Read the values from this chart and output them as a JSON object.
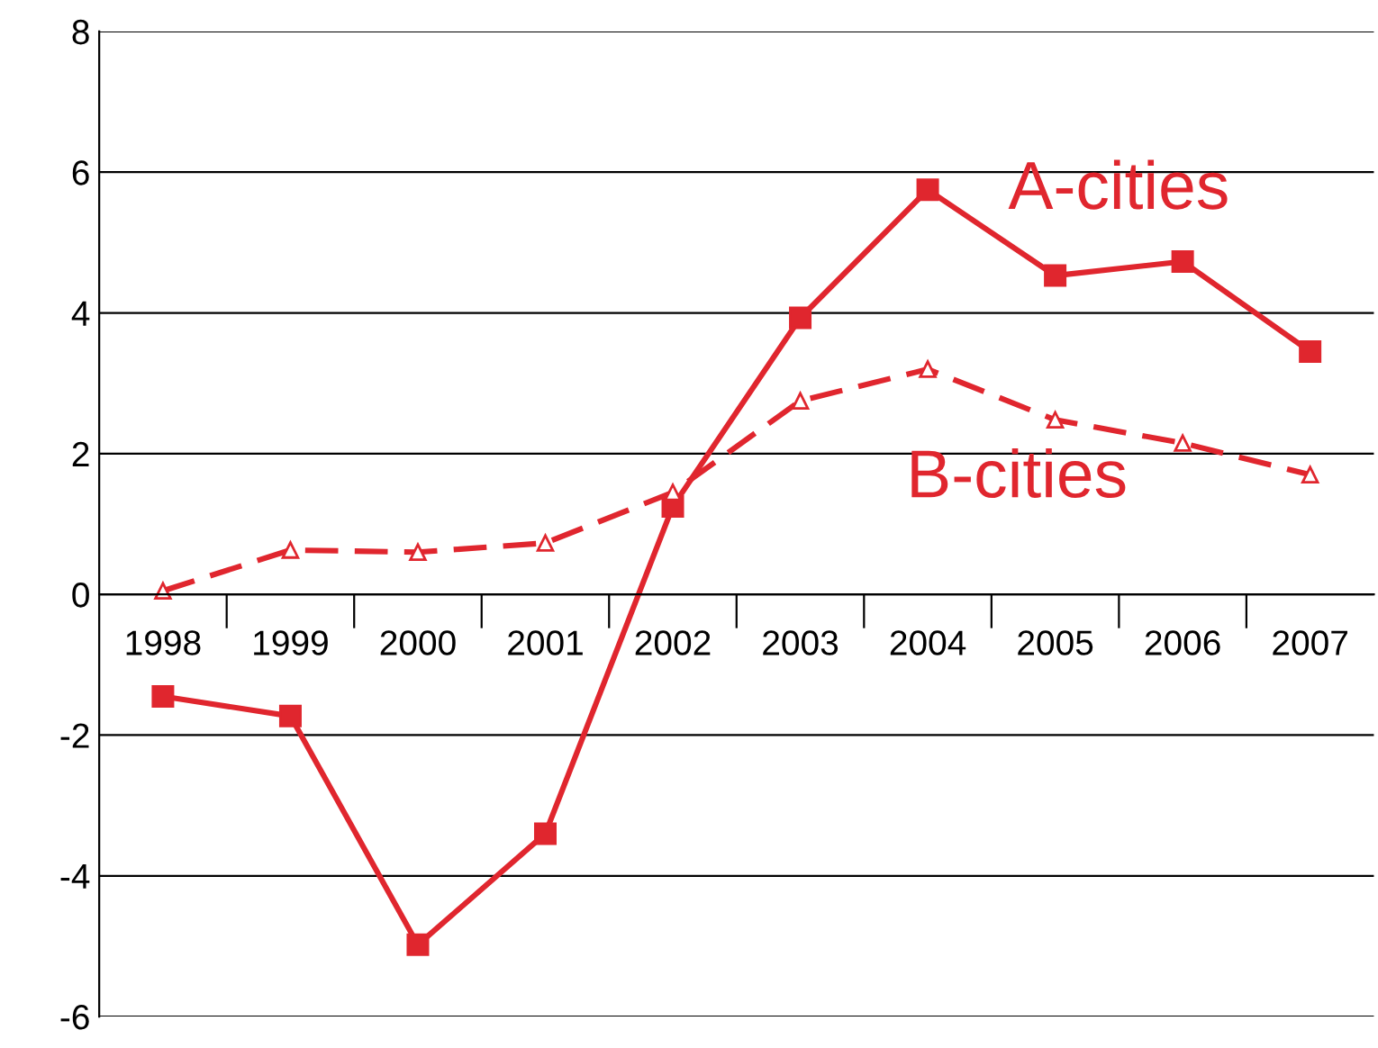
{
  "chart_data": {
    "type": "line",
    "categories": [
      "1998",
      "1999",
      "2000",
      "2001",
      "2002",
      "2003",
      "2004",
      "2005",
      "2006",
      "2007"
    ],
    "series": [
      {
        "name": "A-cities",
        "color": "#e0262e",
        "marker": "square",
        "line_style": "solid",
        "values": [
          -1.45,
          -1.73,
          -4.98,
          -3.4,
          1.25,
          3.93,
          5.75,
          4.53,
          4.73,
          3.45
        ]
      },
      {
        "name": "B-cities",
        "color": "#e0262e",
        "marker": "triangle",
        "line_style": "dashed",
        "values": [
          0.05,
          0.63,
          0.6,
          0.73,
          1.45,
          2.75,
          3.2,
          2.48,
          2.15,
          1.7
        ]
      }
    ],
    "ylim": [
      -6,
      8
    ],
    "yticks": [
      -6,
      -4,
      -2,
      0,
      2,
      4,
      6,
      8
    ],
    "grid": "y",
    "legend": false
  }
}
